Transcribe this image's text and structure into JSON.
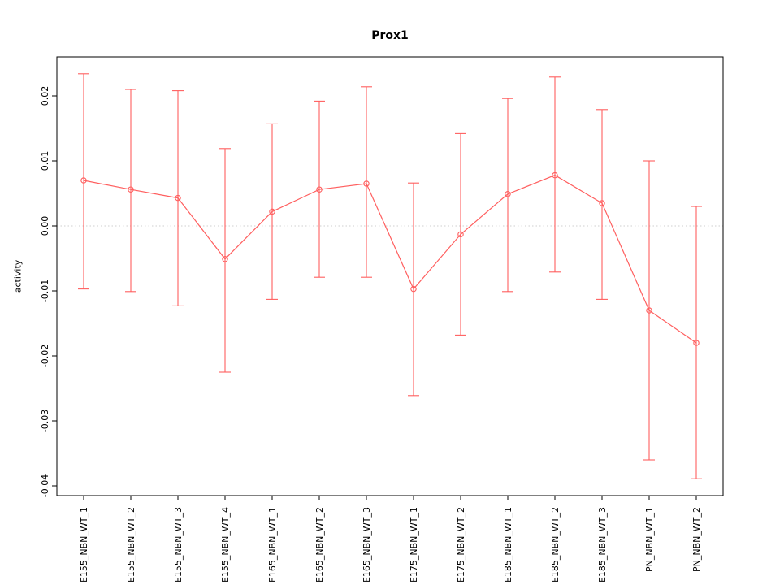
{
  "chart_data": {
    "type": "line",
    "title": "Prox1",
    "xlabel": "",
    "ylabel": "activity",
    "categories": [
      "E155_NBN_WT_1",
      "E155_NBN_WT_2",
      "E155_NBN_WT_3",
      "E155_NBN_WT_4",
      "E165_NBN_WT_1",
      "E165_NBN_WT_2",
      "E165_NBN_WT_3",
      "E175_NBN_WT_1",
      "E175_NBN_WT_2",
      "E185_NBN_WT_1",
      "E185_NBN_WT_2",
      "E185_NBN_WT_3",
      "PN_NBN_WT_1",
      "PN_NBN_WT_2"
    ],
    "values": [
      0.007,
      0.0056,
      0.0043,
      -0.0051,
      0.0022,
      0.0056,
      0.0065,
      -0.0097,
      -0.0013,
      0.0049,
      0.0078,
      0.0035,
      -0.013,
      -0.018
    ],
    "error_low": [
      -0.0097,
      -0.0101,
      -0.0123,
      -0.0225,
      -0.0113,
      -0.0079,
      -0.0079,
      -0.0261,
      -0.0168,
      -0.0101,
      -0.0071,
      -0.0113,
      -0.036,
      -0.0389
    ],
    "error_high": [
      0.0234,
      0.021,
      0.0208,
      0.0119,
      0.0157,
      0.0192,
      0.0214,
      0.0066,
      0.0142,
      0.0196,
      0.0229,
      0.0179,
      0.01,
      0.003
    ],
    "ylim": [
      -0.0415,
      0.026
    ],
    "yticks": [
      -0.04,
      -0.03,
      -0.02,
      -0.01,
      0.0,
      0.01,
      0.02
    ],
    "series_color": "#ff5f5f",
    "axis_color": "#000000",
    "zero_line": {
      "y": 0,
      "style": "dotted",
      "color": "#cfcfcf"
    },
    "marker": "open-circle",
    "grid": false,
    "legend": "none"
  }
}
